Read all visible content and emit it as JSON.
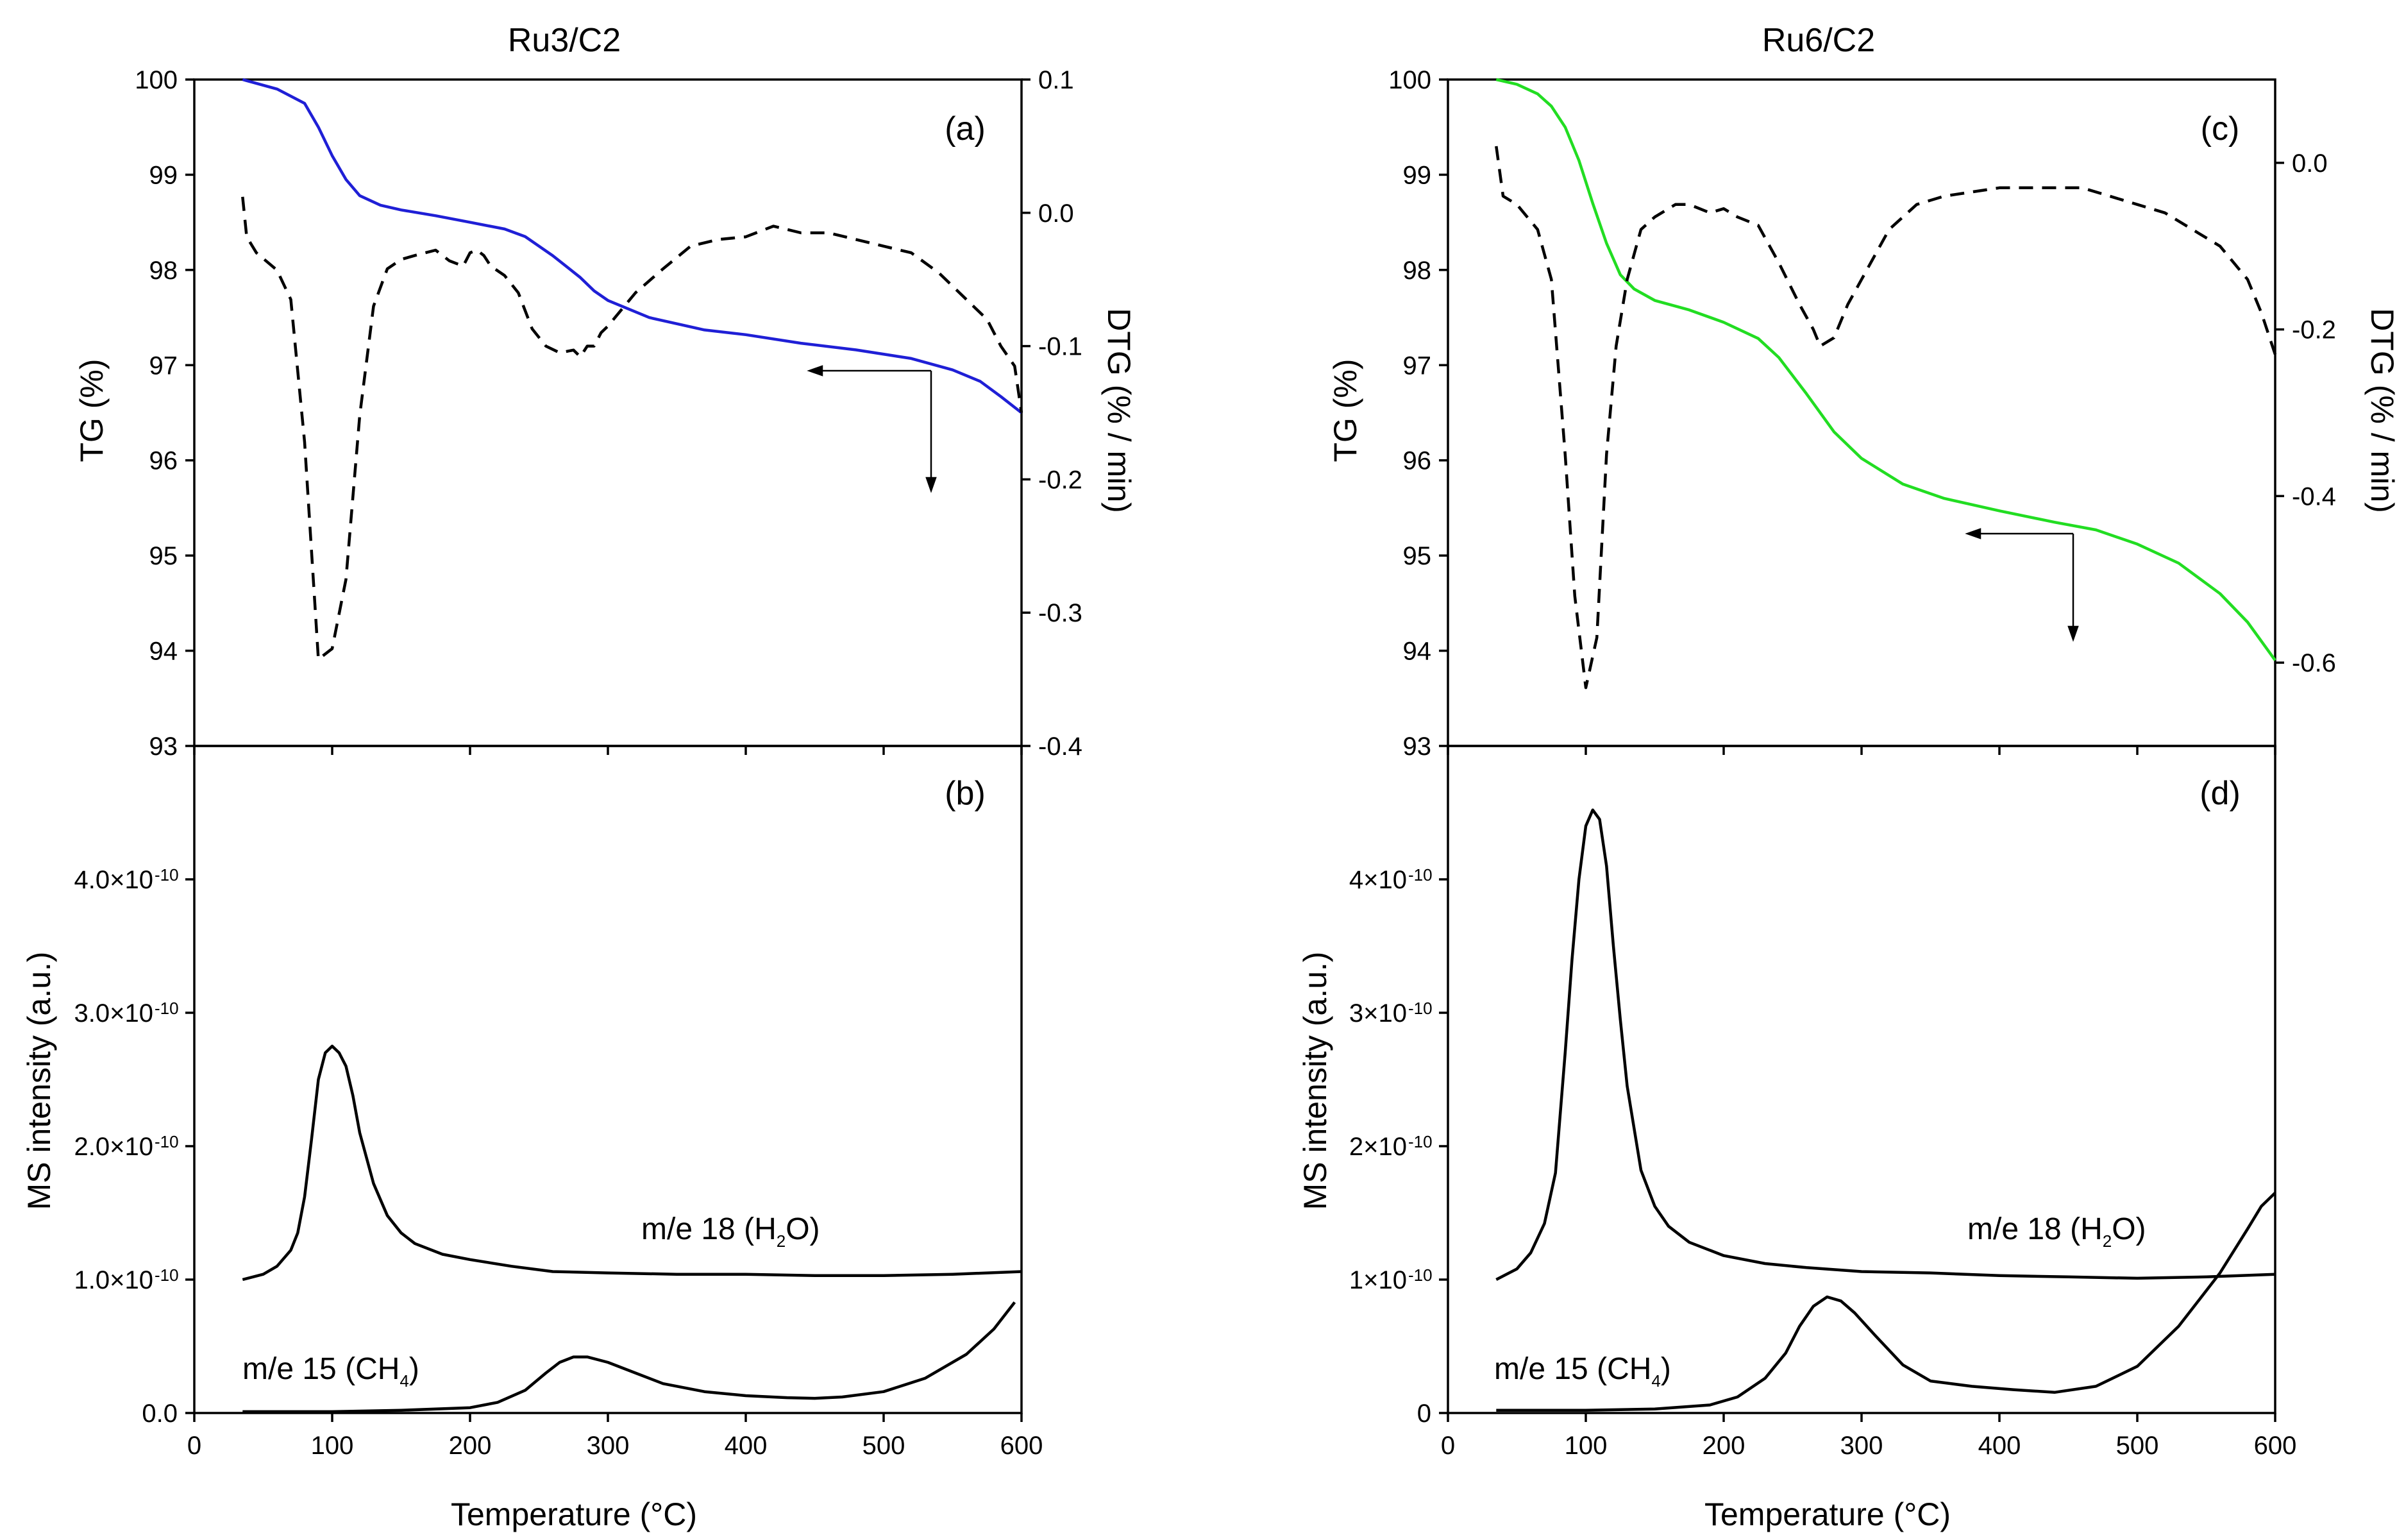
{
  "chart_data": [
    {
      "panel": "a",
      "type": "line",
      "title": "Ru3/C2",
      "panel_label": "(a)",
      "xlabel": "",
      "xlim": [
        0,
        600
      ],
      "x_ticks": [
        0,
        100,
        200,
        300,
        400,
        500,
        600
      ],
      "ylabel": "TG (%)",
      "ylim": [
        93,
        100
      ],
      "y_ticks": [
        "93",
        "94",
        "95",
        "96",
        "97",
        "98",
        "99",
        "100"
      ],
      "y_tick_values": [
        93,
        94,
        95,
        96,
        97,
        98,
        99,
        100
      ],
      "y2label": "DTG (% / min)",
      "y2lim": [
        -0.4,
        0.1
      ],
      "y2_ticks": [
        "-0.4",
        "-0.3",
        "-0.2",
        "-0.1",
        "0.0",
        "0.1"
      ],
      "y2_tick_values": [
        -0.4,
        -0.3,
        -0.2,
        -0.1,
        0.0,
        0.1
      ],
      "tg_color": "#1f1fd6",
      "series": [
        {
          "axis": "left",
          "style": "solid",
          "color": "#1f1fd6",
          "x": [
            35,
            60,
            80,
            90,
            100,
            110,
            120,
            135,
            150,
            175,
            200,
            225,
            240,
            260,
            280,
            290,
            300,
            330,
            370,
            400,
            440,
            480,
            520,
            550,
            570,
            585,
            600
          ],
          "y": [
            100.0,
            99.9,
            99.75,
            99.5,
            99.2,
            98.95,
            98.78,
            98.68,
            98.63,
            98.57,
            98.5,
            98.43,
            98.35,
            98.15,
            97.92,
            97.78,
            97.68,
            97.5,
            97.37,
            97.32,
            97.23,
            97.16,
            97.07,
            96.95,
            96.83,
            96.67,
            96.5
          ]
        },
        {
          "axis": "right",
          "style": "dashed",
          "color": "#000000",
          "x": [
            35,
            38,
            45,
            60,
            70,
            80,
            90,
            100,
            110,
            120,
            130,
            140,
            150,
            160,
            175,
            185,
            195,
            200,
            205,
            210,
            215,
            225,
            235,
            245,
            255,
            265,
            275,
            280,
            285,
            290,
            295,
            300,
            320,
            340,
            360,
            380,
            400,
            420,
            440,
            460,
            480,
            500,
            520,
            540,
            560,
            575,
            585,
            595,
            600
          ],
          "y": [
            0.012,
            -0.018,
            -0.03,
            -0.043,
            -0.065,
            -0.172,
            -0.335,
            -0.327,
            -0.275,
            -0.152,
            -0.07,
            -0.042,
            -0.035,
            -0.032,
            -0.028,
            -0.036,
            -0.04,
            -0.03,
            -0.028,
            -0.032,
            -0.04,
            -0.047,
            -0.06,
            -0.087,
            -0.1,
            -0.105,
            -0.103,
            -0.108,
            -0.1,
            -0.1,
            -0.09,
            -0.085,
            -0.06,
            -0.042,
            -0.025,
            -0.02,
            -0.018,
            -0.01,
            -0.015,
            -0.015,
            -0.02,
            -0.025,
            -0.03,
            -0.045,
            -0.065,
            -0.08,
            -0.1,
            -0.115,
            -0.15
          ]
        }
      ]
    },
    {
      "panel": "b",
      "type": "line",
      "panel_label": "(b)",
      "xlabel": "Temperature (°C)",
      "xlim": [
        0,
        600
      ],
      "x_ticks": [
        0,
        100,
        200,
        300,
        400,
        500,
        600
      ],
      "ylabel": "MS intensity (a.u.)",
      "ylim": [
        0,
        5e-10
      ],
      "y_ticks": [
        "0.0",
        "1.0×10",
        "2.0×10",
        "3.0×10",
        "4.0×10"
      ],
      "y_tick_exponents": [
        "",
        "-10",
        "-10",
        "-10",
        "-10"
      ],
      "y_tick_values": [
        0,
        1e-10,
        2e-10,
        3e-10,
        4e-10
      ],
      "labels": [
        {
          "text": "m/e 18 (H",
          "sub": "2",
          "tail": "O)"
        },
        {
          "text": "m/e 15 (CH",
          "sub": "4",
          "tail": ")"
        }
      ],
      "series": [
        {
          "name": "m/e 18 (H2O)",
          "color": "#000000",
          "x": [
            35,
            50,
            60,
            70,
            75,
            80,
            85,
            90,
            95,
            100,
            105,
            110,
            115,
            120,
            130,
            140,
            150,
            160,
            180,
            200,
            230,
            260,
            300,
            350,
            400,
            450,
            500,
            550,
            600
          ],
          "y": [
            1e-10,
            1.04e-10,
            1.1e-10,
            1.22e-10,
            1.35e-10,
            1.62e-10,
            2.05e-10,
            2.5e-10,
            2.7e-10,
            2.75e-10,
            2.7e-10,
            2.6e-10,
            2.38e-10,
            2.1e-10,
            1.72e-10,
            1.48e-10,
            1.35e-10,
            1.27e-10,
            1.19e-10,
            1.15e-10,
            1.1e-10,
            1.06e-10,
            1.05e-10,
            1.04e-10,
            1.04e-10,
            1.03e-10,
            1.03e-10,
            1.04e-10,
            1.06e-10
          ]
        },
        {
          "name": "m/e 15 (CH4)",
          "color": "#000000",
          "x": [
            35,
            100,
            150,
            200,
            220,
            240,
            255,
            265,
            275,
            285,
            300,
            320,
            340,
            370,
            400,
            430,
            450,
            470,
            500,
            530,
            560,
            580,
            595
          ],
          "y": [
            1e-12,
            1e-12,
            2e-12,
            4e-12,
            8e-12,
            1.7e-11,
            3e-11,
            3.8e-11,
            4.2e-11,
            4.2e-11,
            3.8e-11,
            3e-11,
            2.2e-11,
            1.6e-11,
            1.3e-11,
            1.15e-11,
            1.1e-11,
            1.2e-11,
            1.6e-11,
            2.6e-11,
            4.4e-11,
            6.3e-11,
            8.3e-11
          ]
        }
      ]
    },
    {
      "panel": "c",
      "type": "line",
      "title": "Ru6/C2",
      "panel_label": "(c)",
      "xlabel": "",
      "xlim": [
        0,
        600
      ],
      "x_ticks": [
        0,
        100,
        200,
        300,
        400,
        500,
        600
      ],
      "ylabel": "TG (%)",
      "ylim": [
        93,
        100
      ],
      "y_ticks": [
        "93",
        "94",
        "95",
        "96",
        "97",
        "98",
        "99",
        "100"
      ],
      "y_tick_values": [
        93,
        94,
        95,
        96,
        97,
        98,
        99,
        100
      ],
      "y2label": "DTG (% / min)",
      "y2lim": [
        -0.7,
        0.1
      ],
      "y2_ticks": [
        "-0.6",
        "-0.4",
        "-0.2",
        "0.0"
      ],
      "y2_tick_values": [
        -0.6,
        -0.4,
        -0.2,
        0.0
      ],
      "tg_color": "#22dd22",
      "series": [
        {
          "axis": "left",
          "style": "solid",
          "color": "#22dd22",
          "x": [
            35,
            50,
            65,
            75,
            85,
            95,
            105,
            115,
            125,
            135,
            150,
            175,
            200,
            225,
            240,
            260,
            280,
            300,
            330,
            360,
            400,
            440,
            470,
            500,
            530,
            560,
            580,
            600
          ],
          "y": [
            100.0,
            99.95,
            99.85,
            99.72,
            99.5,
            99.15,
            98.7,
            98.28,
            97.95,
            97.8,
            97.68,
            97.58,
            97.45,
            97.28,
            97.08,
            96.7,
            96.3,
            96.02,
            95.75,
            95.6,
            95.47,
            95.35,
            95.27,
            95.12,
            94.92,
            94.6,
            94.3,
            93.9
          ]
        },
        {
          "axis": "right",
          "style": "dashed",
          "color": "#000000",
          "x": [
            35,
            40,
            50,
            65,
            75,
            85,
            92,
            100,
            108,
            115,
            122,
            130,
            140,
            150,
            165,
            175,
            190,
            200,
            210,
            225,
            240,
            255,
            265,
            270,
            280,
            290,
            300,
            310,
            320,
            340,
            360,
            380,
            400,
            420,
            440,
            460,
            480,
            500,
            520,
            540,
            560,
            580,
            590,
            600
          ],
          "y": [
            0.02,
            -0.04,
            -0.05,
            -0.08,
            -0.14,
            -0.35,
            -0.52,
            -0.63,
            -0.57,
            -0.35,
            -0.22,
            -0.14,
            -0.08,
            -0.065,
            -0.05,
            -0.05,
            -0.06,
            -0.055,
            -0.065,
            -0.075,
            -0.12,
            -0.17,
            -0.2,
            -0.22,
            -0.21,
            -0.17,
            -0.14,
            -0.11,
            -0.08,
            -0.05,
            -0.04,
            -0.035,
            -0.03,
            -0.03,
            -0.03,
            -0.03,
            -0.04,
            -0.05,
            -0.06,
            -0.08,
            -0.1,
            -0.14,
            -0.18,
            -0.23
          ]
        }
      ]
    },
    {
      "panel": "d",
      "type": "line",
      "panel_label": "(d)",
      "xlabel": "Temperature (°C)",
      "xlim": [
        0,
        600
      ],
      "x_ticks": [
        0,
        100,
        200,
        300,
        400,
        500,
        600
      ],
      "ylabel": "MS intensity (a.u.)",
      "ylim": [
        0,
        5e-10
      ],
      "y_ticks": [
        "0",
        "1×10",
        "2×10",
        "3×10",
        "4×10"
      ],
      "y_tick_exponents": [
        "",
        "-10",
        "-10",
        "-10",
        "-10"
      ],
      "y_tick_values": [
        0,
        1e-10,
        2e-10,
        3e-10,
        4e-10
      ],
      "labels": [
        {
          "text": "m/e 18 (H",
          "sub": "2",
          "tail": "O)"
        },
        {
          "text": "m/e 15 (CH",
          "sub": "4",
          "tail": ")"
        }
      ],
      "series": [
        {
          "name": "m/e 18 (H2O)",
          "color": "#000000",
          "x": [
            35,
            50,
            60,
            70,
            78,
            85,
            90,
            95,
            100,
            105,
            110,
            115,
            120,
            125,
            130,
            140,
            150,
            160,
            175,
            200,
            230,
            260,
            300,
            350,
            400,
            450,
            500,
            550,
            600
          ],
          "y": [
            1e-10,
            1.08e-10,
            1.2e-10,
            1.42e-10,
            1.8e-10,
            2.7e-10,
            3.4e-10,
            4e-10,
            4.4e-10,
            4.52e-10,
            4.45e-10,
            4.1e-10,
            3.5e-10,
            2.95e-10,
            2.45e-10,
            1.82e-10,
            1.55e-10,
            1.4e-10,
            1.28e-10,
            1.18e-10,
            1.12e-10,
            1.09e-10,
            1.06e-10,
            1.05e-10,
            1.03e-10,
            1.02e-10,
            1.01e-10,
            1.02e-10,
            1.04e-10
          ]
        },
        {
          "name": "m/e 15 (CH4)",
          "color": "#000000",
          "x": [
            35,
            100,
            150,
            190,
            210,
            230,
            245,
            255,
            265,
            275,
            285,
            295,
            310,
            330,
            350,
            380,
            410,
            440,
            470,
            500,
            530,
            560,
            580,
            590,
            600
          ],
          "y": [
            2e-12,
            2e-12,
            3e-12,
            6e-12,
            1.2e-11,
            2.6e-11,
            4.5e-11,
            6.5e-11,
            8e-11,
            8.7e-11,
            8.4e-11,
            7.5e-11,
            5.8e-11,
            3.6e-11,
            2.4e-11,
            2e-11,
            1.75e-11,
            1.55e-11,
            2e-11,
            3.5e-11,
            6.5e-11,
            1.05e-10,
            1.38e-10,
            1.55e-10,
            1.65e-10
          ]
        }
      ]
    }
  ]
}
